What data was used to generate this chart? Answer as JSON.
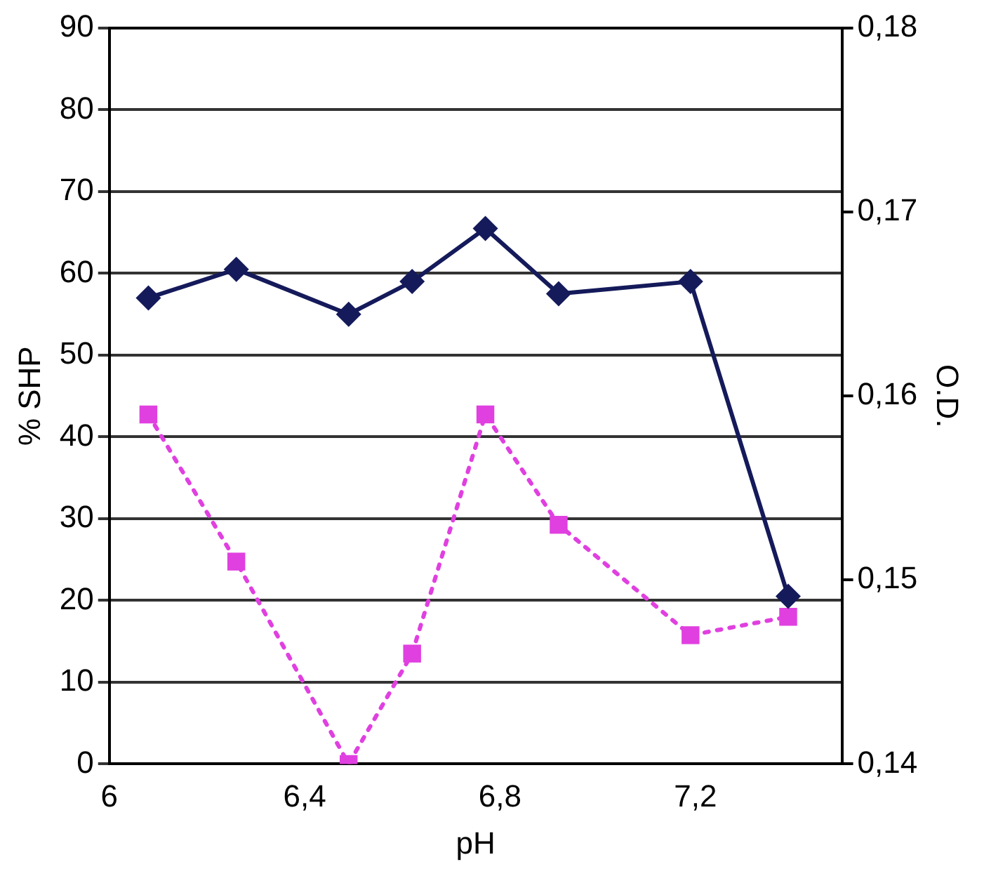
{
  "chart_data": {
    "type": "line",
    "xlabel": "pH",
    "ylabel": "% SHP",
    "y2label": "O.D.",
    "xlim": [
      6,
      7.5
    ],
    "xticks": [
      6,
      {
        "value": 6.4,
        "label": "6,4"
      },
      {
        "value": 6.8,
        "label": "6,8"
      },
      {
        "value": 7.2,
        "label": "7,2"
      }
    ],
    "ylim": [
      0,
      90
    ],
    "yticks": [
      0,
      10,
      20,
      30,
      40,
      50,
      60,
      70,
      80,
      90
    ],
    "y2lim": [
      0.14,
      0.18
    ],
    "y2ticks": [
      {
        "value": 0.14,
        "label": "0,14"
      },
      {
        "value": 0.15,
        "label": "0,15"
      },
      {
        "value": 0.16,
        "label": "0,16"
      },
      {
        "value": 0.17,
        "label": "0,17"
      },
      {
        "value": 0.18,
        "label": "0,18"
      }
    ],
    "grid": "y",
    "x": [
      6.08,
      6.26,
      6.49,
      6.62,
      6.77,
      6.92,
      7.19,
      7.39
    ],
    "series": [
      {
        "color": "#141a5a",
        "marker": "diamond",
        "line_style": "solid",
        "values": [
          57,
          60.5,
          55,
          59,
          65.5,
          57.5,
          59,
          20.5
        ]
      },
      {
        "color": "#e040e0",
        "marker": "square",
        "line_style": "dotted",
        "axis": "y2",
        "values": [
          0.159,
          0.151,
          0.14,
          0.146,
          0.159,
          0.153,
          0.147,
          0.148
        ]
      }
    ]
  }
}
